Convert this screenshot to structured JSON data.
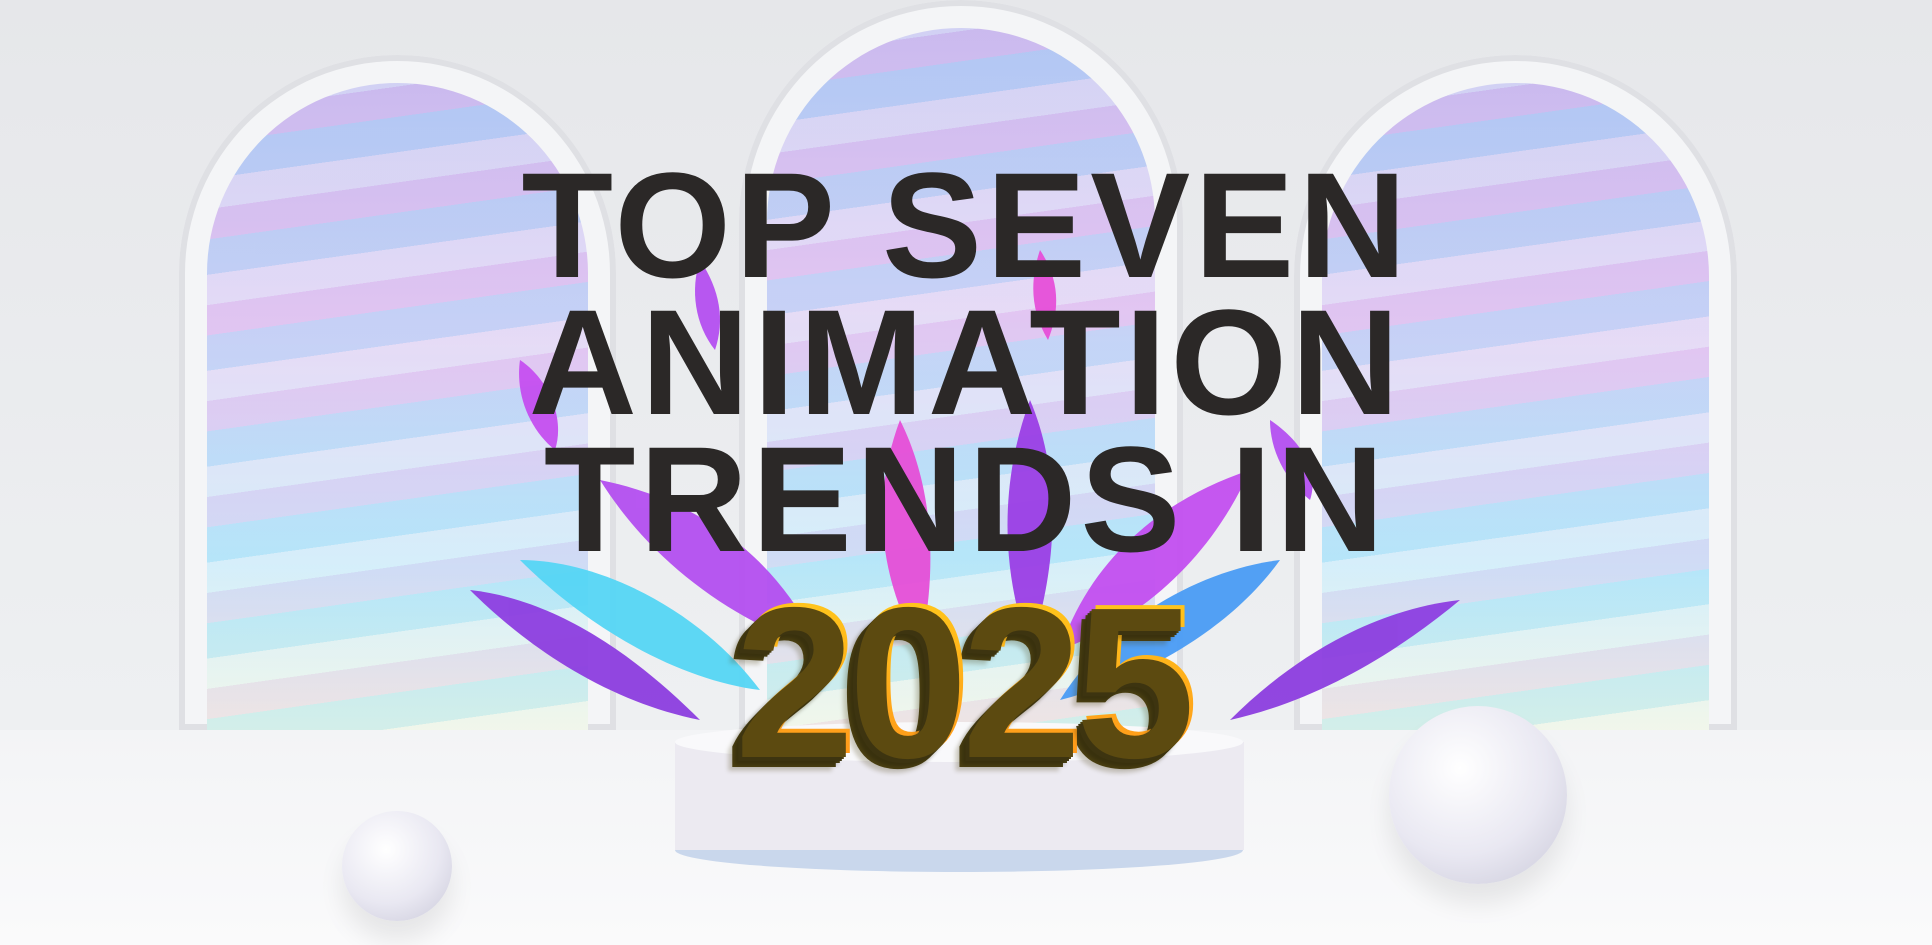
{
  "banner": {
    "title_lines": [
      "TOP SEVEN",
      "ANIMATION",
      "TRENDS IN"
    ],
    "year": "2025"
  },
  "colors": {
    "title": "#2b2827",
    "year_top": "#ffd21c",
    "year_bottom": "#ff8c1a",
    "leaf_purple": "#9b3fe6",
    "leaf_cyan": "#4fd8f5",
    "leaf_pink": "#e64fd8"
  }
}
